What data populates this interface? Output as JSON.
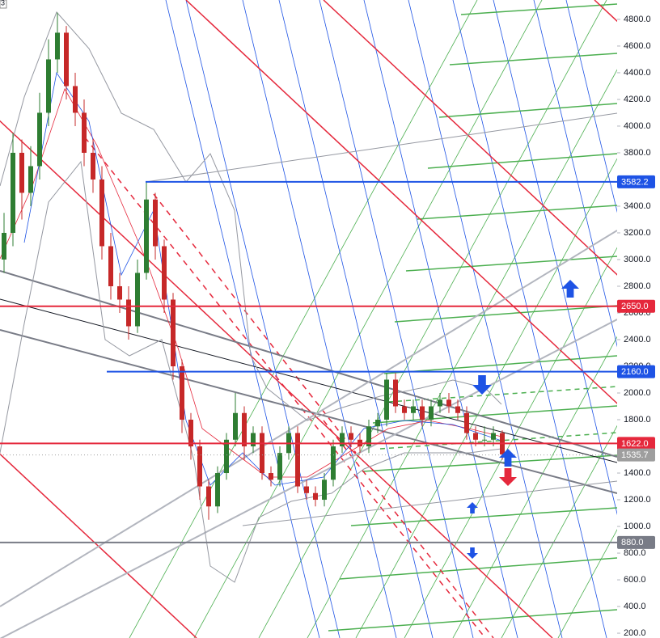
{
  "chart_data": {
    "type": "candlestick",
    "corner_label": "3",
    "open": [
      3000,
      3200,
      3800,
      3500,
      3700,
      4100,
      4500,
      4700,
      4300,
      4100,
      3800,
      3600,
      3100,
      2800,
      2700,
      2500,
      2900,
      3450,
      3100,
      2700,
      2200,
      1800,
      1600,
      1300,
      1150,
      1400,
      1650,
      1850,
      1600,
      1700,
      1400,
      1350,
      1550,
      1700,
      1300,
      1250,
      1200,
      1350,
      1600,
      1700,
      1650,
      1600,
      1750,
      1800,
      2100,
      1900,
      1850,
      1900,
      1800,
      1900,
      1950,
      1900,
      1850,
      1700,
      1650,
      1650,
      1700
    ],
    "high": [
      3350,
      3950,
      3900,
      3850,
      4250,
      4650,
      4850,
      4750,
      4400,
      4200,
      3900,
      3700,
      3200,
      2900,
      2800,
      3000,
      3580,
      3500,
      3150,
      2750,
      2250,
      1850,
      1650,
      1350,
      1450,
      1700,
      2000,
      1900,
      1750,
      1750,
      1450,
      1600,
      1750,
      1750,
      1350,
      1300,
      1400,
      1650,
      1750,
      1750,
      1700,
      1800,
      1850,
      2150,
      2150,
      1950,
      1950,
      1950,
      1950,
      2000,
      2000,
      1950,
      1900,
      1750,
      1750,
      1750,
      1720
    ],
    "low": [
      2900,
      3100,
      3300,
      3400,
      3600,
      4000,
      4400,
      4200,
      4000,
      3700,
      3500,
      3000,
      2700,
      2600,
      2400,
      2450,
      2850,
      3000,
      2600,
      2100,
      1700,
      1500,
      1200,
      1050,
      1100,
      1350,
      1600,
      1500,
      1550,
      1350,
      1300,
      1300,
      1500,
      1250,
      1200,
      1150,
      1150,
      1300,
      1550,
      1600,
      1550,
      1550,
      1700,
      1750,
      1850,
      1800,
      1800,
      1750,
      1750,
      1850,
      1850,
      1800,
      1650,
      1600,
      1600,
      1600,
      1500
    ],
    "close": [
      3200,
      3800,
      3500,
      3700,
      4100,
      4500,
      4700,
      4300,
      4100,
      3800,
      3600,
      3100,
      2800,
      2700,
      2500,
      2900,
      3450,
      3100,
      2700,
      2200,
      1800,
      1600,
      1300,
      1150,
      1400,
      1650,
      1850,
      1600,
      1700,
      1400,
      1350,
      1550,
      1700,
      1300,
      1250,
      1200,
      1350,
      1600,
      1700,
      1650,
      1600,
      1750,
      1800,
      2100,
      1900,
      1850,
      1900,
      1800,
      1900,
      1950,
      1900,
      1850,
      1700,
      1650,
      1650,
      1700,
      1540
    ],
    "up_color": "#2e7d32",
    "down_color": "#c62828",
    "ylim": [
      164,
      4945
    ],
    "yticks": [
      {
        "value": 200,
        "label": "200.0"
      },
      {
        "value": 400,
        "label": "400.0"
      },
      {
        "value": 600,
        "label": "600.0"
      },
      {
        "value": 800,
        "label": "800.0"
      },
      {
        "value": 1000,
        "label": "1000.0"
      },
      {
        "value": 1200,
        "label": "1200.0"
      },
      {
        "value": 1400,
        "label": "1400.0"
      },
      {
        "value": 1600,
        "label": "1600.0"
      },
      {
        "value": 1800,
        "label": "1800.0"
      },
      {
        "value": 2000,
        "label": "2000.0"
      },
      {
        "value": 2200,
        "label": "2200.0"
      },
      {
        "value": 2400,
        "label": "2400.0"
      },
      {
        "value": 2600,
        "label": "2600.0"
      },
      {
        "value": 2800,
        "label": "2800.0"
      },
      {
        "value": 3000,
        "label": "3000.0"
      },
      {
        "value": 3200,
        "label": "3200.0"
      },
      {
        "value": 3400,
        "label": "3400.0"
      },
      {
        "value": 3600,
        "label": "3600.0"
      },
      {
        "value": 3800,
        "label": "3800.0"
      },
      {
        "value": 4000,
        "label": "4000.0"
      },
      {
        "value": 4200,
        "label": "4200.0"
      },
      {
        "value": 4400,
        "label": "4400.0"
      },
      {
        "value": 4600,
        "label": "4600.0"
      },
      {
        "value": 4800,
        "label": "4800.0"
      }
    ],
    "price_lines": [
      {
        "value": 3582.2,
        "label": "3582.2",
        "color": "#1e53e5"
      },
      {
        "value": 2650,
        "label": "2650.0",
        "color": "#e5283c"
      },
      {
        "value": 2160,
        "label": "2160.0",
        "color": "#1e53e5"
      },
      {
        "value": 1622,
        "label": "1622.0",
        "color": "#e5283c"
      },
      {
        "value": 1535.7,
        "label": "1535.7",
        "color": "#9e9e9e"
      },
      {
        "value": 880,
        "label": "880.0",
        "color": "#787b86"
      }
    ]
  }
}
